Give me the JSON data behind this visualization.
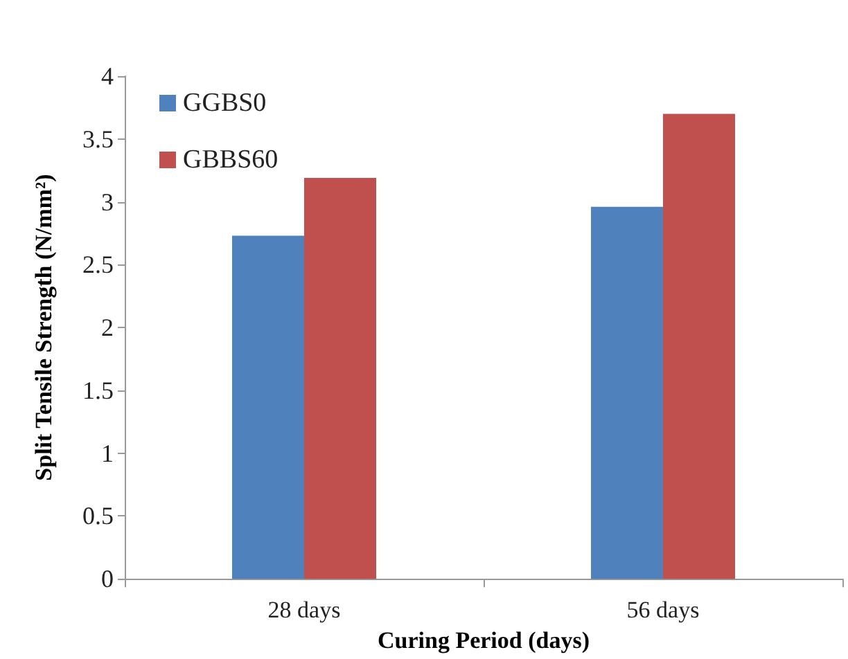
{
  "chart_data": {
    "type": "bar",
    "xlabel": "Curing Period (days)",
    "ylabel": "Split Tensile Strength (N/mm²)",
    "categories": [
      "28 days",
      "56 days"
    ],
    "series": [
      {
        "name": "GGBS0",
        "color": "#4f81bd",
        "values": [
          2.73,
          2.96
        ]
      },
      {
        "name": "GBBS60",
        "color": "#c0504d",
        "values": [
          3.19,
          3.7
        ]
      }
    ],
    "ylim": [
      0,
      4
    ],
    "yticks": [
      0,
      0.5,
      1,
      1.5,
      2,
      2.5,
      3,
      3.5,
      4
    ],
    "grid": false,
    "legend": "top left"
  }
}
